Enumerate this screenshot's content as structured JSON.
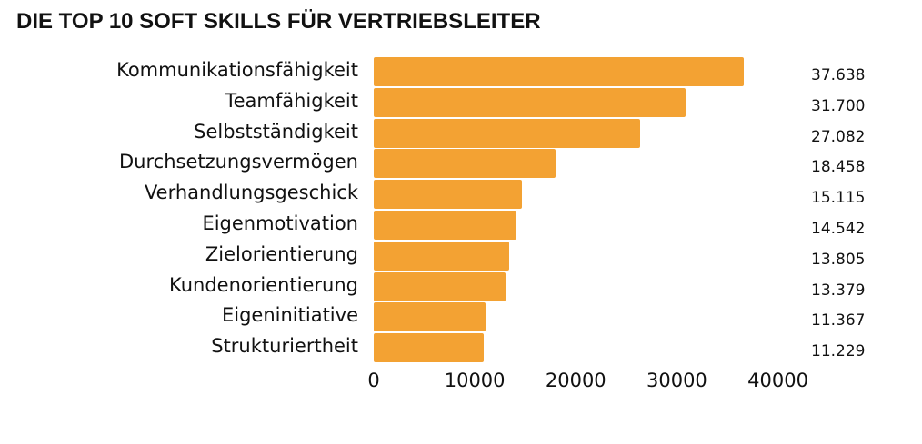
{
  "chart_data": {
    "type": "bar",
    "orientation": "horizontal",
    "title": "DIE TOP 10 SOFT SKILLS FÜR VERTRIEBSLEITER",
    "xlabel": "",
    "ylabel": "",
    "xlim": [
      0,
      40000
    ],
    "x_ticks": [
      "0",
      "10000",
      "20000",
      "30000",
      "40000"
    ],
    "grid": false,
    "legend": null,
    "bar_color": "#F3A233",
    "categories": [
      "Kommunikationsfähigkeit",
      "Teamfähigkeit",
      "Selbstständigkeit",
      "Durchsetzungsvermögen",
      "Verhandlungsgeschick",
      "Eigenmotivation",
      "Zielorientierung",
      "Kundenorientierung",
      "Eigeninitiative",
      "Strukturiertheit"
    ],
    "values": [
      37638,
      31700,
      27082,
      18458,
      15115,
      14542,
      13805,
      13379,
      11367,
      11229
    ],
    "value_labels": [
      "37.638",
      "31.700",
      "27.082",
      "18.458",
      "15.115",
      "14.542",
      "13.805",
      "13.379",
      "11.367",
      "11.229"
    ]
  }
}
